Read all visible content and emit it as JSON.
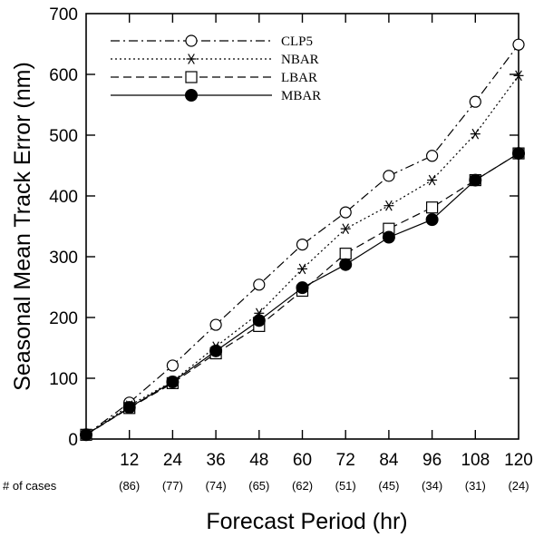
{
  "chart_data": {
    "type": "line",
    "xlabel": "Forecast Period (hr)",
    "ylabel": "Seasonal Mean Track Error (nm)",
    "xlim": [
      0,
      120
    ],
    "ylim": [
      0,
      700
    ],
    "x": [
      0,
      12,
      24,
      36,
      48,
      60,
      72,
      84,
      96,
      108,
      120
    ],
    "x_tick_labels": [
      "12",
      "24",
      "36",
      "48",
      "60",
      "72",
      "84",
      "96",
      "108",
      "120"
    ],
    "y_tick_labels": [
      "0",
      "100",
      "200",
      "300",
      "400",
      "500",
      "600",
      "700"
    ],
    "cases_label": "# of cases",
    "cases": [
      "(86)",
      "(77)",
      "(74)",
      "(65)",
      "(62)",
      "(51)",
      "(45)",
      "(34)",
      "(31)",
      "(24)"
    ],
    "grid": false,
    "legend_position": "top-left",
    "series": [
      {
        "name": "CLP5",
        "marker": "open-circle",
        "line": "dash-dot",
        "values": [
          7,
          60,
          121,
          188,
          254,
          320,
          373,
          433,
          466,
          555,
          649
        ]
      },
      {
        "name": "NBAR",
        "marker": "asterisk",
        "line": "dotted",
        "values": [
          7,
          55,
          95,
          152,
          207,
          280,
          346,
          384,
          426,
          502,
          598
        ]
      },
      {
        "name": "LBAR",
        "marker": "open-square",
        "line": "dashed",
        "values": [
          7,
          51,
          92,
          141,
          186,
          244,
          305,
          346,
          381,
          426,
          470
        ]
      },
      {
        "name": "MBAR",
        "marker": "filled-circle",
        "line": "solid",
        "values": [
          7,
          52,
          94,
          145,
          195,
          249,
          287,
          332,
          361,
          426,
          470
        ]
      }
    ]
  }
}
